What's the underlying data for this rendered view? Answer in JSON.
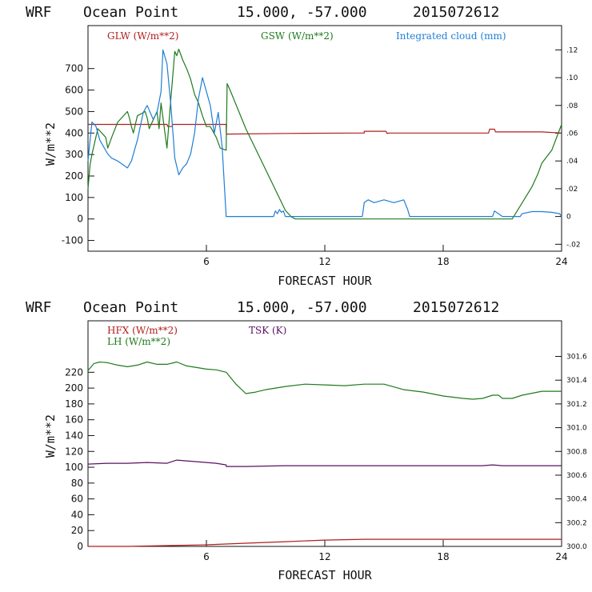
{
  "panels": [
    {
      "title": {
        "model": "WRF",
        "location": "Ocean Point",
        "coords": "15.000, -57.000",
        "run": "2015072612"
      },
      "xlabel": "FORECAST HOUR",
      "ylabel": "W/m**2",
      "x_ticks": [
        "6",
        "12",
        "18",
        "24"
      ],
      "x_tick_values": [
        6,
        12,
        18,
        24
      ],
      "y_ticks": [
        "-100",
        "0",
        "100",
        "200",
        "300",
        "400",
        "500",
        "600",
        "700"
      ],
      "y_tick_values": [
        -100,
        0,
        100,
        200,
        300,
        400,
        500,
        600,
        700
      ],
      "right_ticks": [
        "-.02",
        "0",
        ".02",
        ".04",
        ".06",
        ".08",
        ".10",
        ".12"
      ],
      "right_tick_values": [
        -0.02,
        0,
        0.02,
        0.04,
        0.06,
        0.08,
        0.1,
        0.12
      ],
      "legend": [
        {
          "label": "GLW (W/m**2)",
          "color": "#b01e1e"
        },
        {
          "label": "GSW (W/m**2)",
          "color": "#1f7a1f"
        },
        {
          "label": "Integrated cloud (mm)",
          "color": "#1f7fd6"
        }
      ]
    },
    {
      "title": {
        "model": "WRF",
        "location": "Ocean Point",
        "coords": "15.000, -57.000",
        "run": "2015072612"
      },
      "xlabel": "FORECAST HOUR",
      "ylabel": "W/m**2",
      "x_ticks": [
        "6",
        "12",
        "18",
        "24"
      ],
      "x_tick_values": [
        6,
        12,
        18,
        24
      ],
      "y_ticks": [
        "0",
        "20",
        "40",
        "60",
        "80",
        "100",
        "120",
        "140",
        "160",
        "180",
        "200",
        "220"
      ],
      "y_tick_values": [
        0,
        20,
        40,
        60,
        80,
        100,
        120,
        140,
        160,
        180,
        200,
        220
      ],
      "right_ticks": [
        "300.0",
        "300.2",
        "300.4",
        "300.6",
        "300.8",
        "301.0",
        "301.2",
        "301.4",
        "301.6"
      ],
      "right_tick_values": [
        300.0,
        300.2,
        300.4,
        300.6,
        300.8,
        301.0,
        301.2,
        301.4,
        301.6
      ],
      "legend": [
        {
          "label": "HFX (W/m**2)",
          "color": "#b01e1e"
        },
        {
          "label": "LH  (W/m**2)",
          "color": "#1f7a1f"
        },
        {
          "label": "TSK (K)",
          "color": "#5a1060"
        }
      ]
    }
  ],
  "chart_data": [
    {
      "type": "line",
      "title": "WRF Ocean Point 15.000, -57.000 2015072612",
      "xlabel": "FORECAST HOUR",
      "ylabel": "W/m**2",
      "xlim": [
        0,
        24
      ],
      "ylim": [
        -150,
        900
      ],
      "y2lim": [
        -0.025,
        0.1375
      ],
      "series": [
        {
          "name": "GLW (W/m**2)",
          "axis": "left",
          "color": "#b01e1e",
          "x": [
            0,
            4.0,
            4.05,
            4.25,
            4.3,
            7.0,
            7.01,
            10,
            13.5,
            14.0,
            14.0,
            15.1,
            15.15,
            15.2,
            15.2,
            20.3,
            20.35,
            20.6,
            20.65,
            23.0,
            24.0
          ],
          "y": [
            440,
            440,
            430,
            430,
            440,
            440,
            395,
            398,
            400,
            400,
            408,
            408,
            398,
            398,
            400,
            400,
            418,
            418,
            405,
            405,
            400
          ]
        },
        {
          "name": "GSW (W/m**2)",
          "axis": "left",
          "color": "#1f7a1f",
          "x": [
            0,
            0.1,
            0.2,
            0.5,
            0.9,
            1.0,
            1.2,
            1.5,
            2.0,
            2.1,
            2.2,
            2.3,
            2.5,
            2.9,
            3.0,
            3.1,
            3.5,
            3.6,
            3.7,
            3.9,
            4.0,
            4.2,
            4.4,
            4.5,
            4.6,
            4.8,
            5.0,
            5.2,
            5.4,
            5.6,
            5.8,
            6.0,
            6.2,
            6.5,
            6.7,
            7.0,
            7.05,
            7.2,
            8.0,
            9.0,
            10.0,
            10.3,
            10.5,
            21.5,
            21.9,
            22.5,
            22.8,
            23.0,
            23.5,
            24.0
          ],
          "y": [
            140,
            250,
            300,
            420,
            380,
            330,
            380,
            450,
            500,
            470,
            430,
            400,
            480,
            500,
            470,
            420,
            500,
            420,
            540,
            400,
            330,
            560,
            780,
            760,
            790,
            740,
            700,
            650,
            580,
            540,
            480,
            430,
            430,
            380,
            330,
            320,
            630,
            600,
            420,
            230,
            40,
            10,
            0,
            0,
            60,
            150,
            210,
            260,
            320,
            440
          ]
        },
        {
          "name": "Integrated cloud (mm)",
          "axis": "right",
          "color": "#1f7fd6",
          "x": [
            0,
            0.2,
            0.4,
            0.6,
            0.8,
            1.0,
            1.2,
            1.5,
            1.8,
            2.0,
            2.2,
            2.5,
            2.8,
            3.0,
            3.3,
            3.5,
            3.7,
            3.8,
            4.0,
            4.2,
            4.4,
            4.6,
            4.8,
            5.0,
            5.2,
            5.4,
            5.6,
            5.8,
            6.0,
            6.2,
            6.4,
            6.6,
            6.8,
            7.0,
            9.4,
            9.5,
            9.6,
            9.7,
            9.8,
            9.9,
            10.0,
            10.1,
            13.9,
            14.0,
            14.2,
            14.5,
            15.0,
            15.5,
            16.0,
            16.2,
            16.3,
            20.5,
            20.6,
            20.8,
            21.0,
            21.2,
            21.9,
            22.0,
            22.5,
            23.0,
            23.5,
            23.9,
            24.0
          ],
          "y": [
            0.04,
            0.068,
            0.065,
            0.055,
            0.05,
            0.045,
            0.042,
            0.04,
            0.037,
            0.035,
            0.04,
            0.055,
            0.075,
            0.08,
            0.07,
            0.075,
            0.09,
            0.12,
            0.11,
            0.08,
            0.042,
            0.03,
            0.035,
            0.038,
            0.045,
            0.06,
            0.085,
            0.1,
            0.09,
            0.08,
            0.06,
            0.075,
            0.05,
            0.0,
            0.0,
            0.004,
            0.002,
            0.005,
            0.003,
            0.004,
            0.0,
            0.0,
            0.0,
            0.01,
            0.012,
            0.01,
            0.012,
            0.01,
            0.012,
            0.005,
            0.0,
            0.0,
            0.004,
            0.002,
            0.0,
            0.0,
            0.0,
            0.002,
            0.0035,
            0.0035,
            0.003,
            0.002,
            0.0
          ]
        }
      ]
    },
    {
      "type": "line",
      "title": "WRF Ocean Point 15.000, -57.000 2015072612",
      "xlabel": "FORECAST HOUR",
      "ylabel": "W/m**2",
      "xlim": [
        0,
        24
      ],
      "ylim": [
        0,
        285
      ],
      "y2lim": [
        300.0,
        301.9
      ],
      "series": [
        {
          "name": "HFX (W/m**2)",
          "axis": "left",
          "color": "#b01e1e",
          "x": [
            0,
            2,
            4,
            6,
            7,
            8,
            10,
            12,
            14,
            16,
            18,
            20,
            22,
            24
          ],
          "y": [
            0,
            0,
            1,
            2,
            3,
            4,
            6,
            8,
            9,
            9,
            9,
            9,
            9,
            9
          ]
        },
        {
          "name": "LH  (W/m**2)",
          "axis": "left",
          "color": "#1f7a1f",
          "x": [
            0,
            0.3,
            0.6,
            1,
            1.5,
            2,
            2.5,
            3,
            3.5,
            4,
            4.5,
            5,
            5.5,
            6,
            6.5,
            7,
            7.5,
            8,
            8.5,
            9,
            10,
            11,
            12,
            13,
            14,
            15,
            16,
            17,
            18,
            19,
            19.5,
            20,
            20.5,
            20.8,
            21,
            21.5,
            22,
            23,
            24
          ],
          "y": [
            222,
            231,
            233,
            232,
            229,
            227,
            229,
            233,
            230,
            230,
            233,
            228,
            226,
            224,
            223,
            220,
            205,
            193,
            195,
            198,
            202,
            205,
            204,
            203,
            205,
            205,
            198,
            195,
            190,
            187,
            186,
            187,
            191,
            191,
            187,
            187,
            191,
            196,
            196
          ]
        },
        {
          "name": "TSK (K)",
          "axis": "left",
          "color": "#5a1060",
          "x": [
            0,
            1,
            2,
            3,
            4,
            4.5,
            5,
            6,
            6.5,
            7,
            7.01,
            8,
            10,
            12,
            14,
            16,
            18,
            20,
            20.5,
            21,
            22,
            24
          ],
          "y": [
            104,
            105,
            105,
            106,
            105,
            109,
            108,
            106,
            105,
            103,
            101,
            101,
            102,
            102,
            102,
            102,
            102,
            102,
            103,
            102,
            102,
            102
          ]
        }
      ]
    }
  ]
}
